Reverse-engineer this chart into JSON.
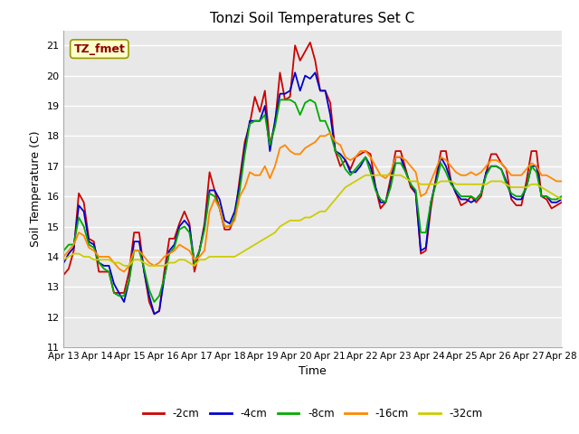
{
  "title": "Tonzi Soil Temperatures Set C",
  "xlabel": "Time",
  "ylabel": "Soil Temperature (C)",
  "ylim": [
    11.0,
    21.5
  ],
  "yticks": [
    11.0,
    12.0,
    13.0,
    14.0,
    15.0,
    16.0,
    17.0,
    18.0,
    19.0,
    20.0,
    21.0
  ],
  "ytick_labels": [
    "11",
    "12",
    "13",
    "14",
    "15",
    "16",
    "17",
    "18",
    "19",
    "20",
    "21"
  ],
  "fig_color": "#ffffff",
  "plot_bg": "#e8e8e8",
  "grid_color": "#ffffff",
  "line_colors": {
    "-2cm": "#cc0000",
    "-4cm": "#0000cc",
    "-8cm": "#00aa00",
    "-16cm": "#ff8800",
    "-32cm": "#cccc00"
  },
  "annotation_text": "TZ_fmet",
  "annotation_color": "#8b0000",
  "annotation_bg": "#ffffcc",
  "annotation_border": "#999900",
  "x_tick_labels": [
    "Apr 13",
    "Apr 14",
    "Apr 15",
    "Apr 16",
    "Apr 17",
    "Apr 18",
    "Apr 19",
    "Apr 20",
    "Apr 21",
    "Apr 22",
    "Apr 23",
    "Apr 24",
    "Apr 25",
    "Apr 26",
    "Apr 27",
    "Apr 28"
  ],
  "series": {
    "-2cm": [
      13.4,
      13.6,
      14.2,
      16.1,
      15.8,
      14.6,
      14.5,
      13.5,
      13.5,
      13.5,
      12.8,
      12.8,
      12.8,
      13.5,
      14.8,
      14.8,
      13.5,
      12.5,
      12.1,
      12.2,
      13.5,
      14.6,
      14.6,
      15.1,
      15.5,
      15.1,
      13.5,
      14.2,
      15.1,
      16.8,
      16.2,
      15.6,
      14.9,
      14.9,
      15.3,
      16.6,
      17.8,
      18.4,
      19.3,
      18.8,
      19.5,
      17.7,
      18.4,
      20.1,
      19.2,
      19.3,
      21.0,
      20.5,
      20.8,
      21.1,
      20.5,
      19.5,
      19.5,
      19.1,
      17.5,
      17.0,
      17.2,
      16.9,
      17.3,
      17.4,
      17.5,
      17.4,
      16.3,
      15.6,
      15.8,
      16.6,
      17.5,
      17.5,
      16.9,
      16.3,
      16.1,
      14.1,
      14.2,
      15.6,
      16.6,
      17.5,
      17.5,
      16.5,
      16.1,
      15.7,
      15.8,
      16.0,
      15.8,
      16.0,
      16.8,
      17.4,
      17.4,
      17.1,
      16.9,
      15.9,
      15.7,
      15.7,
      16.5,
      17.5,
      17.5,
      16.0,
      15.9,
      15.6,
      15.7,
      15.8
    ],
    "-4cm": [
      13.8,
      14.1,
      14.3,
      15.7,
      15.5,
      14.5,
      14.4,
      13.8,
      13.7,
      13.7,
      13.1,
      12.8,
      12.5,
      13.2,
      14.5,
      14.5,
      13.5,
      12.7,
      12.1,
      12.2,
      13.3,
      14.2,
      14.4,
      15.0,
      15.2,
      15.0,
      13.8,
      14.2,
      15.0,
      16.2,
      16.2,
      15.9,
      15.2,
      15.1,
      15.5,
      16.4,
      17.6,
      18.5,
      18.5,
      18.5,
      19.0,
      17.5,
      18.5,
      19.4,
      19.4,
      19.5,
      20.1,
      19.5,
      20.0,
      19.9,
      20.1,
      19.5,
      19.5,
      18.7,
      17.5,
      17.4,
      17.2,
      16.8,
      16.8,
      17.0,
      17.3,
      17.0,
      16.3,
      15.8,
      15.8,
      16.4,
      17.3,
      17.3,
      16.8,
      16.4,
      16.1,
      14.2,
      14.3,
      15.8,
      16.5,
      17.3,
      17.0,
      16.5,
      16.1,
      15.9,
      15.9,
      15.8,
      15.9,
      16.1,
      16.8,
      17.0,
      17.0,
      16.9,
      16.5,
      16.0,
      15.9,
      15.9,
      16.3,
      17.0,
      17.0,
      16.0,
      16.0,
      15.8,
      15.8,
      15.9
    ],
    "-8cm": [
      14.2,
      14.4,
      14.4,
      15.3,
      15.0,
      14.4,
      14.3,
      13.8,
      13.6,
      13.5,
      12.8,
      12.7,
      12.7,
      13.2,
      14.2,
      14.2,
      13.6,
      12.9,
      12.5,
      12.7,
      13.3,
      14.1,
      14.3,
      14.9,
      15.0,
      14.8,
      13.8,
      14.2,
      14.9,
      16.1,
      16.0,
      15.6,
      15.0,
      15.0,
      15.3,
      16.2,
      17.4,
      18.4,
      18.5,
      18.5,
      18.7,
      17.7,
      18.3,
      19.2,
      19.2,
      19.2,
      19.1,
      18.7,
      19.1,
      19.2,
      19.1,
      18.5,
      18.5,
      18.1,
      17.5,
      17.3,
      16.9,
      16.7,
      16.9,
      17.1,
      17.3,
      16.8,
      16.2,
      15.9,
      15.8,
      16.3,
      17.1,
      17.1,
      16.8,
      16.4,
      16.2,
      14.8,
      14.8,
      15.8,
      16.4,
      17.1,
      16.8,
      16.4,
      16.2,
      16.0,
      16.0,
      16.0,
      15.9,
      16.1,
      16.7,
      17.0,
      17.0,
      16.9,
      16.4,
      16.1,
      16.0,
      16.0,
      16.3,
      17.0,
      16.8,
      16.0,
      16.0,
      15.9,
      15.9,
      16.0
    ],
    "-16cm": [
      14.0,
      14.2,
      14.4,
      14.8,
      14.7,
      14.3,
      14.2,
      14.0,
      14.0,
      14.0,
      13.8,
      13.6,
      13.5,
      13.7,
      14.2,
      14.2,
      14.0,
      13.8,
      13.7,
      13.8,
      14.0,
      14.1,
      14.2,
      14.4,
      14.3,
      14.2,
      13.9,
      14.0,
      14.2,
      15.5,
      15.9,
      15.6,
      15.0,
      15.0,
      15.2,
      16.0,
      16.3,
      16.8,
      16.7,
      16.7,
      17.0,
      16.6,
      17.0,
      17.6,
      17.7,
      17.5,
      17.4,
      17.4,
      17.6,
      17.7,
      17.8,
      18.0,
      18.0,
      18.1,
      17.8,
      17.7,
      17.3,
      17.2,
      17.3,
      17.5,
      17.5,
      17.3,
      17.0,
      16.7,
      16.6,
      16.8,
      17.3,
      17.3,
      17.2,
      17.0,
      16.8,
      16.0,
      16.1,
      16.5,
      16.9,
      17.3,
      17.2,
      17.0,
      16.8,
      16.7,
      16.7,
      16.8,
      16.7,
      16.8,
      17.0,
      17.2,
      17.2,
      17.1,
      16.9,
      16.7,
      16.7,
      16.7,
      16.9,
      17.1,
      17.0,
      16.7,
      16.7,
      16.6,
      16.5,
      16.5
    ],
    "-32cm": [
      13.9,
      14.0,
      14.1,
      14.1,
      14.0,
      14.0,
      13.9,
      13.9,
      13.9,
      13.9,
      13.8,
      13.8,
      13.7,
      13.7,
      13.9,
      13.9,
      13.8,
      13.7,
      13.7,
      13.7,
      13.7,
      13.8,
      13.8,
      13.9,
      13.9,
      13.8,
      13.7,
      13.9,
      13.9,
      14.0,
      14.0,
      14.0,
      14.0,
      14.0,
      14.0,
      14.1,
      14.2,
      14.3,
      14.4,
      14.5,
      14.6,
      14.7,
      14.8,
      15.0,
      15.1,
      15.2,
      15.2,
      15.2,
      15.3,
      15.3,
      15.4,
      15.5,
      15.5,
      15.7,
      15.9,
      16.1,
      16.3,
      16.4,
      16.5,
      16.6,
      16.7,
      16.7,
      16.7,
      16.7,
      16.7,
      16.7,
      16.7,
      16.7,
      16.6,
      16.5,
      16.5,
      16.4,
      16.4,
      16.4,
      16.4,
      16.5,
      16.5,
      16.5,
      16.4,
      16.4,
      16.4,
      16.4,
      16.4,
      16.4,
      16.4,
      16.5,
      16.5,
      16.5,
      16.4,
      16.3,
      16.3,
      16.3,
      16.3,
      16.4,
      16.4,
      16.3,
      16.2,
      16.1,
      16.0,
      15.9
    ]
  }
}
